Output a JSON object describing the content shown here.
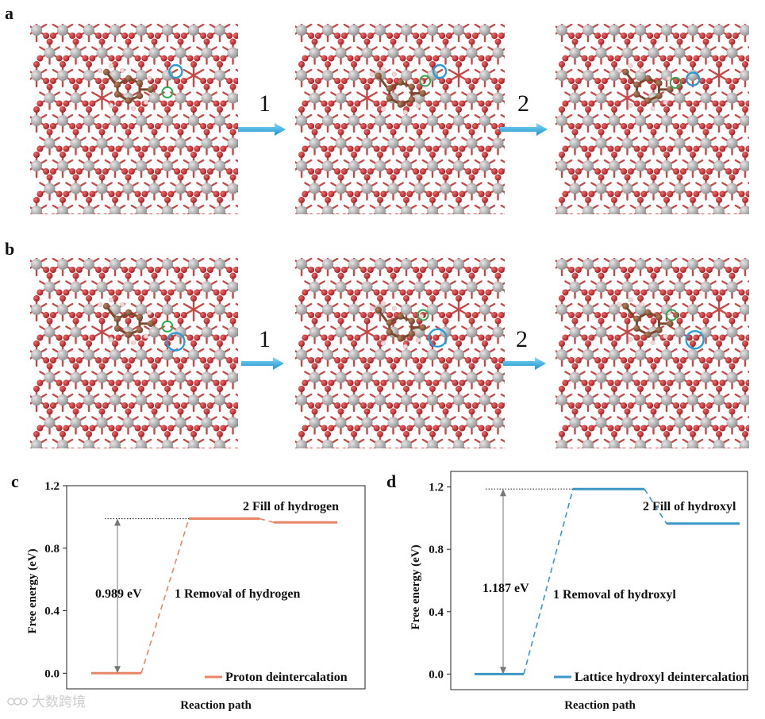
{
  "figure": {
    "panels": {
      "a": "a",
      "b": "b",
      "c": "c",
      "d": "d"
    },
    "steps": [
      "1",
      "2"
    ],
    "colors": {
      "metal": "#a7a7a7",
      "oxygen": "#c0262b",
      "carbon": "#8b5a3c",
      "hydrogen": "#f2d7d7",
      "bond": "#c84848",
      "green_marker": "#2fa84f",
      "blue_marker": "#2b9bd8",
      "arrow": "#4fb7e3",
      "orange": "#e8866a",
      "blue_line": "#3a97c6"
    }
  },
  "watermark": "大数跨境",
  "chart_data": [
    {
      "panel": "c",
      "type": "line",
      "title": "",
      "xlabel": "Reaction path",
      "ylabel": "Free energy (eV)",
      "ylim": [
        -0.1,
        1.2
      ],
      "yticks": [
        0.0,
        0.4,
        0.8,
        1.2
      ],
      "ytick_labels": [
        "0.0",
        "0.4",
        "0.8",
        "1.2"
      ],
      "levels": [
        {
          "state": "initial",
          "energy": 0.0
        },
        {
          "state": "after removal",
          "energy": 0.989
        },
        {
          "state": "after fill",
          "energy": 0.965
        }
      ],
      "barrier_label": "0.989 eV",
      "step_labels": [
        "1 Removal of  hydrogen",
        "2 Fill of  hydrogen"
      ],
      "legend": "Proton deintercalation",
      "legend_position": "bottom-right",
      "color": "#e8866a"
    },
    {
      "panel": "d",
      "type": "line",
      "title": "",
      "xlabel": "Reaction path",
      "ylabel": "Free energy (eV)",
      "ylim": [
        -0.1,
        1.3
      ],
      "yticks": [
        0.0,
        0.4,
        0.8,
        1.2
      ],
      "ytick_labels": [
        "0.0",
        "0.4",
        "0.8",
        "1.2"
      ],
      "levels": [
        {
          "state": "initial",
          "energy": 0.0
        },
        {
          "state": "after removal",
          "energy": 1.187
        },
        {
          "state": "after fill",
          "energy": 0.965
        }
      ],
      "barrier_label": "1.187 eV",
      "step_labels": [
        "1 Removal of hydroxyl",
        "2 Fill of hydroxyl"
      ],
      "legend": "Lattice hydroxyl deintercalation",
      "legend_position": "bottom-right",
      "color": "#3a97c6"
    }
  ]
}
